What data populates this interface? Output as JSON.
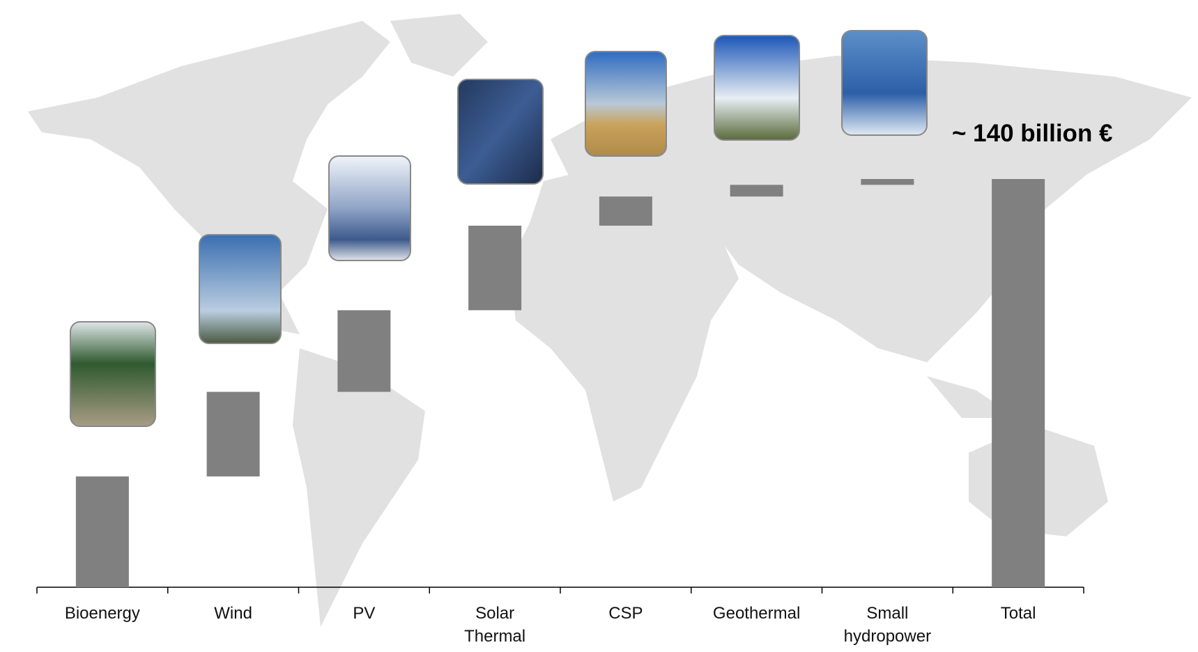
{
  "chart_data": {
    "type": "waterfall",
    "categories": [
      "Bioenergy",
      "Wind",
      "PV",
      "Solar Thermal",
      "CSP",
      "Geothermal",
      "Small hydropower",
      "Total"
    ],
    "values": [
      38,
      29,
      28,
      29,
      10,
      4,
      2,
      140
    ],
    "last_is_total": true,
    "color": "#808080",
    "annotation": "~ 140 billion €"
  }
}
